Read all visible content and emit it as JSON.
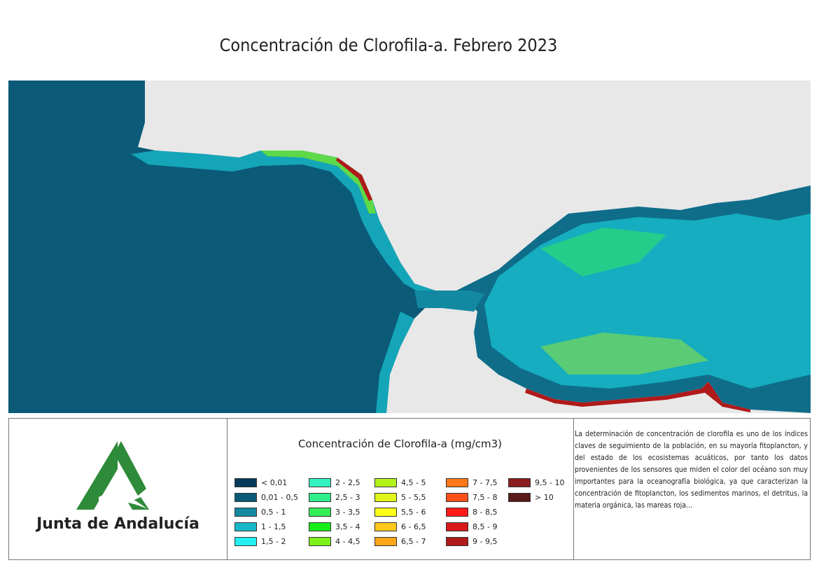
{
  "title": "Concentración de Clorofila-a. Febrero 2023",
  "map": {
    "land_color": "#e8e8e8",
    "ocean_base_color": "#0a5a78"
  },
  "logo": {
    "text": "Junta de Andalucía",
    "color": "#2e8b3a"
  },
  "legend": {
    "title": "Concentración de Clorofila-a (mg/cm3)",
    "classes": [
      {
        "label": "< 0,01",
        "color": "#063a5a"
      },
      {
        "label": "0,01 - 0,5",
        "color": "#0b5a78"
      },
      {
        "label": "0,5 - 1",
        "color": "#1289a0"
      },
      {
        "label": "1 - 1,5",
        "color": "#16b8c8"
      },
      {
        "label": "1,5 - 2",
        "color": "#22f0f0"
      },
      {
        "label": "2 - 2,5",
        "color": "#33f2c0"
      },
      {
        "label": "2,5 - 3",
        "color": "#30ee8a"
      },
      {
        "label": "3 - 3,5",
        "color": "#33ee55"
      },
      {
        "label": "3,5 - 4",
        "color": "#19ee19"
      },
      {
        "label": "4 - 4,5",
        "color": "#7ef01a"
      },
      {
        "label": "4,5 - 5",
        "color": "#b2f21a"
      },
      {
        "label": "5 - 5,5",
        "color": "#e0f51a"
      },
      {
        "label": "5,5 - 6",
        "color": "#ffff1a"
      },
      {
        "label": "6 - 6,5",
        "color": "#ffc81a"
      },
      {
        "label": "6,5 - 7",
        "color": "#ffa51a"
      },
      {
        "label": "7 - 7,5",
        "color": "#ff781a"
      },
      {
        "label": "7,5 - 8",
        "color": "#ff501a"
      },
      {
        "label": "8 - 8,5",
        "color": "#ff1a1a"
      },
      {
        "label": "8,5 - 9",
        "color": "#d81a1a"
      },
      {
        "label": "9 - 9,5",
        "color": "#b01a1a"
      },
      {
        "label": "9,5 - 10",
        "color": "#8a1e1e"
      },
      {
        "label": "> 10",
        "color": "#5a1a1a"
      }
    ]
  },
  "description": "La determinación de concentración de clorofila es uno de los índices claves de seguimiento de la población, en su mayoría fitoplancton, y del estado de los ecosistemas acuáticos, por tanto los datos provenientes de los sensores que miden el color del océano son muy importantes para la oceanografía biológica, ya que caracterizan la concentración de fitoplancton, los sedimentos marinos, el detritus, la materia orgánica, las mareas roja..."
}
